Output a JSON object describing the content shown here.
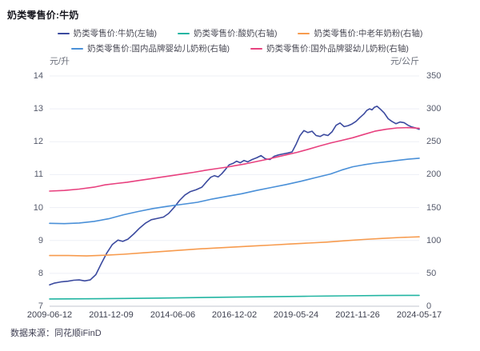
{
  "title": "奶类零售价:牛奶",
  "source": "数据来源：同花顺iFinD",
  "axis_units": {
    "left": "元/升",
    "right": "元/公斤"
  },
  "colors": {
    "milk_navy": "#3B4A9F",
    "yogurt_teal": "#22B5A2",
    "senior_powder_orange": "#F79B4E",
    "domestic_infant_blue": "#4A90D8",
    "foreign_infant_pink": "#E8417F",
    "grid": "#EDEFF6",
    "axis_line": "#C0C5CF",
    "tick_text": "#54596A"
  },
  "chart_data": {
    "type": "line",
    "title": "奶类零售价:牛奶",
    "grid": true,
    "legend_position": "top",
    "x_range_dates": [
      "2009-06-12",
      "2024-05-17"
    ],
    "x_tick_labels": [
      "2009-06-12",
      "2011-12-09",
      "2014-06-06",
      "2016-12-02",
      "2019-05-24",
      "2021-11-26",
      "2024-05-17"
    ],
    "y_left": {
      "label": "元/升",
      "min": 7,
      "max": 14,
      "ticks": [
        14,
        13,
        12,
        11,
        10,
        9,
        8,
        7
      ]
    },
    "y_right": {
      "label": "元/公斤",
      "min": 0,
      "max": 350,
      "ticks": [
        350,
        300,
        250,
        200,
        150,
        100,
        50,
        0
      ]
    },
    "legend_rows": [
      [
        0,
        1,
        2
      ],
      [
        3,
        4
      ]
    ],
    "series": [
      {
        "name": "奶类零售价:牛奶(左轴)",
        "axis": "left",
        "color": "#3B4A9F",
        "points": [
          [
            0.0,
            7.65
          ],
          [
            0.012,
            7.7
          ],
          [
            0.03,
            7.74
          ],
          [
            0.05,
            7.76
          ],
          [
            0.065,
            7.79
          ],
          [
            0.08,
            7.8
          ],
          [
            0.095,
            7.77
          ],
          [
            0.11,
            7.8
          ],
          [
            0.125,
            7.96
          ],
          [
            0.14,
            8.3
          ],
          [
            0.155,
            8.62
          ],
          [
            0.17,
            8.88
          ],
          [
            0.185,
            9.01
          ],
          [
            0.198,
            8.97
          ],
          [
            0.212,
            9.04
          ],
          [
            0.228,
            9.2
          ],
          [
            0.244,
            9.38
          ],
          [
            0.26,
            9.53
          ],
          [
            0.275,
            9.63
          ],
          [
            0.292,
            9.67
          ],
          [
            0.308,
            9.71
          ],
          [
            0.322,
            9.82
          ],
          [
            0.338,
            10.02
          ],
          [
            0.352,
            10.22
          ],
          [
            0.366,
            10.38
          ],
          [
            0.38,
            10.48
          ],
          [
            0.396,
            10.54
          ],
          [
            0.412,
            10.62
          ],
          [
            0.426,
            10.8
          ],
          [
            0.436,
            10.92
          ],
          [
            0.446,
            10.97
          ],
          [
            0.456,
            10.93
          ],
          [
            0.466,
            11.03
          ],
          [
            0.476,
            11.16
          ],
          [
            0.486,
            11.3
          ],
          [
            0.496,
            11.34
          ],
          [
            0.506,
            11.41
          ],
          [
            0.516,
            11.36
          ],
          [
            0.526,
            11.43
          ],
          [
            0.536,
            11.39
          ],
          [
            0.548,
            11.46
          ],
          [
            0.56,
            11.51
          ],
          [
            0.572,
            11.58
          ],
          [
            0.584,
            11.48
          ],
          [
            0.596,
            11.46
          ],
          [
            0.608,
            11.56
          ],
          [
            0.62,
            11.6
          ],
          [
            0.632,
            11.63
          ],
          [
            0.645,
            11.66
          ],
          [
            0.656,
            11.69
          ],
          [
            0.667,
            11.93
          ],
          [
            0.677,
            12.18
          ],
          [
            0.688,
            12.34
          ],
          [
            0.699,
            12.28
          ],
          [
            0.71,
            12.32
          ],
          [
            0.721,
            12.19
          ],
          [
            0.732,
            12.16
          ],
          [
            0.742,
            12.22
          ],
          [
            0.753,
            12.19
          ],
          [
            0.764,
            12.3
          ],
          [
            0.775,
            12.5
          ],
          [
            0.786,
            12.57
          ],
          [
            0.797,
            12.46
          ],
          [
            0.808,
            12.49
          ],
          [
            0.818,
            12.54
          ],
          [
            0.829,
            12.62
          ],
          [
            0.84,
            12.74
          ],
          [
            0.85,
            12.84
          ],
          [
            0.858,
            12.95
          ],
          [
            0.866,
            13.0
          ],
          [
            0.872,
            12.97
          ],
          [
            0.879,
            13.05
          ],
          [
            0.886,
            13.08
          ],
          [
            0.894,
            13.0
          ],
          [
            0.905,
            12.88
          ],
          [
            0.916,
            12.7
          ],
          [
            0.926,
            12.62
          ],
          [
            0.937,
            12.55
          ],
          [
            0.948,
            12.6
          ],
          [
            0.959,
            12.58
          ],
          [
            0.97,
            12.5
          ],
          [
            0.98,
            12.45
          ],
          [
            0.99,
            12.42
          ],
          [
            1.0,
            12.38
          ]
        ]
      },
      {
        "name": "奶类零售价:酸奶(右轴)",
        "axis": "right",
        "color": "#22B5A2",
        "points": [
          [
            0.0,
            11.0
          ],
          [
            0.1,
            11.3
          ],
          [
            0.2,
            11.8
          ],
          [
            0.3,
            12.4
          ],
          [
            0.4,
            13.1
          ],
          [
            0.5,
            13.8
          ],
          [
            0.6,
            14.5
          ],
          [
            0.7,
            15.2
          ],
          [
            0.8,
            15.8
          ],
          [
            0.9,
            16.3
          ],
          [
            1.0,
            16.5
          ]
        ]
      },
      {
        "name": "奶类零售价:中老年奶粉(右轴)",
        "axis": "right",
        "color": "#F79B4E",
        "points": [
          [
            0.0,
            77
          ],
          [
            0.05,
            77
          ],
          [
            0.1,
            76.5
          ],
          [
            0.15,
            77.5
          ],
          [
            0.2,
            79
          ],
          [
            0.25,
            81
          ],
          [
            0.3,
            83
          ],
          [
            0.35,
            85
          ],
          [
            0.4,
            87
          ],
          [
            0.45,
            88.5
          ],
          [
            0.5,
            90
          ],
          [
            0.55,
            91.5
          ],
          [
            0.6,
            93
          ],
          [
            0.65,
            94.5
          ],
          [
            0.7,
            96
          ],
          [
            0.75,
            97.5
          ],
          [
            0.8,
            99.5
          ],
          [
            0.85,
            101.5
          ],
          [
            0.9,
            103
          ],
          [
            0.95,
            104.5
          ],
          [
            1.0,
            105.5
          ]
        ]
      },
      {
        "name": "奶类零售价:国内品牌婴幼儿奶粉(右轴)",
        "axis": "right",
        "color": "#4A90D8",
        "points": [
          [
            0.0,
            126
          ],
          [
            0.04,
            125.5
          ],
          [
            0.08,
            126.5
          ],
          [
            0.12,
            129
          ],
          [
            0.16,
            133
          ],
          [
            0.2,
            139
          ],
          [
            0.24,
            144
          ],
          [
            0.28,
            148.5
          ],
          [
            0.32,
            152
          ],
          [
            0.36,
            155
          ],
          [
            0.4,
            158
          ],
          [
            0.44,
            163
          ],
          [
            0.48,
            167
          ],
          [
            0.52,
            171
          ],
          [
            0.56,
            176
          ],
          [
            0.6,
            180.5
          ],
          [
            0.64,
            185
          ],
          [
            0.68,
            190
          ],
          [
            0.72,
            195.5
          ],
          [
            0.76,
            201
          ],
          [
            0.79,
            207
          ],
          [
            0.82,
            212
          ],
          [
            0.85,
            215
          ],
          [
            0.88,
            217.5
          ],
          [
            0.91,
            219.5
          ],
          [
            0.94,
            221.5
          ],
          [
            0.97,
            223.5
          ],
          [
            1.0,
            225
          ]
        ]
      },
      {
        "name": "奶类零售价:国外品牌婴幼儿奶粉(右轴)",
        "axis": "right",
        "color": "#E8417F",
        "points": [
          [
            0.0,
            175
          ],
          [
            0.04,
            176
          ],
          [
            0.08,
            178
          ],
          [
            0.12,
            181
          ],
          [
            0.15,
            184.5
          ],
          [
            0.18,
            186.5
          ],
          [
            0.21,
            188.5
          ],
          [
            0.24,
            191
          ],
          [
            0.27,
            193.5
          ],
          [
            0.3,
            196
          ],
          [
            0.33,
            198.5
          ],
          [
            0.36,
            201
          ],
          [
            0.39,
            203.5
          ],
          [
            0.42,
            206.5
          ],
          [
            0.45,
            209
          ],
          [
            0.48,
            211.5
          ],
          [
            0.5,
            213.5
          ],
          [
            0.53,
            216.5
          ],
          [
            0.56,
            220
          ],
          [
            0.59,
            223.5
          ],
          [
            0.62,
            227.5
          ],
          [
            0.64,
            230
          ],
          [
            0.67,
            234
          ],
          [
            0.7,
            238.5
          ],
          [
            0.73,
            243.5
          ],
          [
            0.76,
            248
          ],
          [
            0.79,
            252
          ],
          [
            0.82,
            256
          ],
          [
            0.85,
            261
          ],
          [
            0.88,
            266
          ],
          [
            0.91,
            269
          ],
          [
            0.94,
            271
          ],
          [
            0.97,
            271.5
          ],
          [
            1.0,
            270.5
          ]
        ]
      }
    ]
  }
}
